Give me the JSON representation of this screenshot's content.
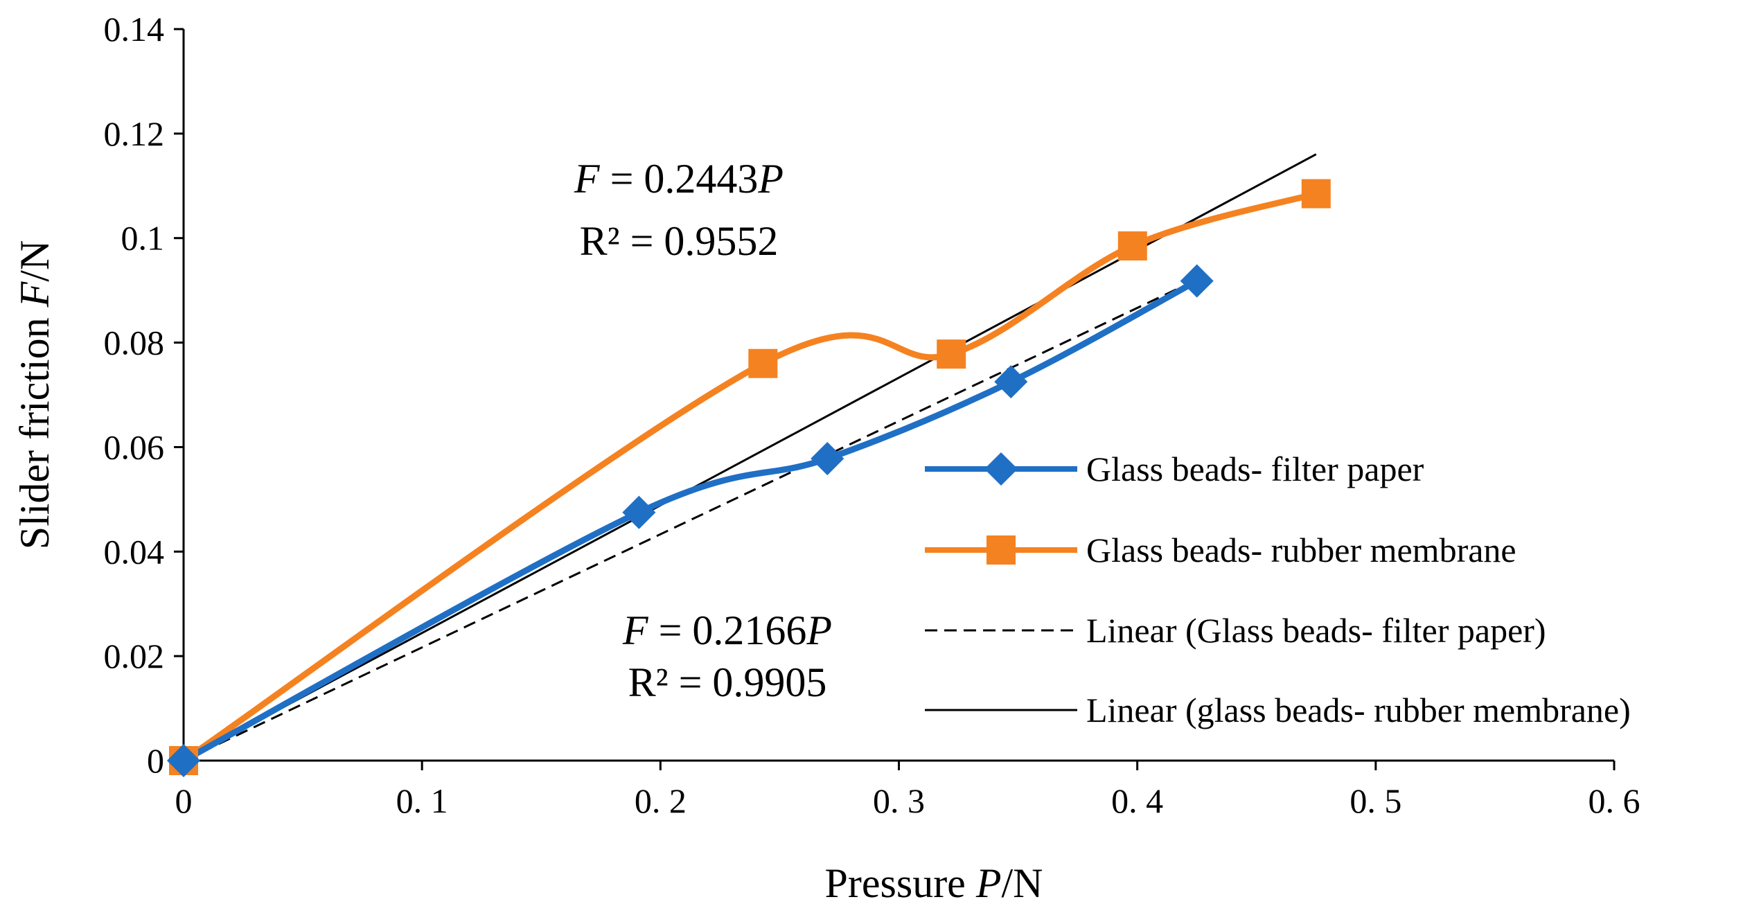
{
  "chart_data": {
    "type": "scatter",
    "title": "",
    "xlabel": {
      "prefix": "Pressure ",
      "var": "P",
      "unit": "/N"
    },
    "ylabel": {
      "prefix": "Slider friction ",
      "var": "F",
      "unit": "/N"
    },
    "xlim": [
      0,
      0.6
    ],
    "ylim": [
      0,
      0.14
    ],
    "xticks": [
      0,
      0.1,
      0.2,
      0.3,
      0.4,
      0.5,
      0.6
    ],
    "xtick_labels": [
      "0",
      "0. 1",
      "0. 2",
      "0. 3",
      "0. 4",
      "0. 5",
      "0. 6"
    ],
    "yticks": [
      0,
      0.02,
      0.04,
      0.06,
      0.08,
      0.1,
      0.12,
      0.14
    ],
    "ytick_labels": [
      "0",
      "0.02",
      "0.04",
      "0.06",
      "0.08",
      "0.1",
      "0.12",
      "0.14"
    ],
    "grid": false,
    "legend_position": "right",
    "series": [
      {
        "name": "Glass beads- filter paper",
        "color": "#1f6fc5",
        "marker": "diamond",
        "smooth": true,
        "points": [
          [
            0,
            0
          ],
          [
            0.191,
            0.0475
          ],
          [
            0.27,
            0.0578
          ],
          [
            0.347,
            0.0725
          ],
          [
            0.425,
            0.0918
          ]
        ]
      },
      {
        "name": "Glass beads- rubber membrane",
        "color": "#f58220",
        "marker": "square",
        "smooth": true,
        "points": [
          [
            0,
            0
          ],
          [
            0.243,
            0.076
          ],
          [
            0.322,
            0.0778
          ],
          [
            0.398,
            0.0985
          ],
          [
            0.475,
            0.1085
          ]
        ]
      }
    ],
    "trendlines": [
      {
        "name": "Linear (Glass beads- filter paper)",
        "style": "dashed",
        "color": "#000000",
        "slope": 0.2166,
        "x_range": [
          0,
          0.425
        ],
        "equation": {
          "var": "F",
          "rhs": " = 0.2166",
          "rhs_var": "P"
        },
        "r2": "R² = 0.9905"
      },
      {
        "name": "Linear (glass beads- rubber membrane)",
        "style": "solid",
        "color": "#000000",
        "slope": 0.2443,
        "x_range": [
          0,
          0.475
        ],
        "equation": {
          "var": "F",
          "rhs": " = 0.2443",
          "rhs_var": "P"
        },
        "r2": "R² = 0.9552"
      }
    ]
  }
}
